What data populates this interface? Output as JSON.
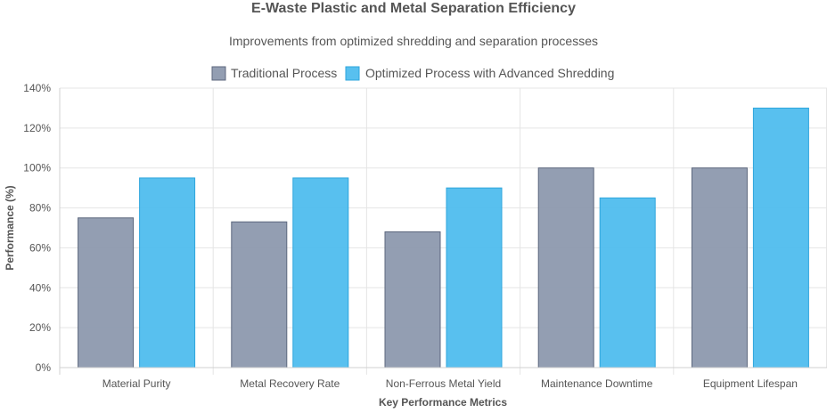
{
  "chart_data": {
    "type": "bar",
    "title": "E-Waste Plastic and Metal Separation Efficiency",
    "subtitle": "Improvements from optimized shredding and separation processes",
    "xlabel": "Key Performance Metrics",
    "ylabel": "Performance (%)",
    "categories": [
      "Material Purity",
      "Metal Recovery Rate",
      "Non-Ferrous Metal Yield",
      "Maintenance Downtime",
      "Equipment Lifespan"
    ],
    "series": [
      {
        "name": "Traditional Process",
        "values": [
          75,
          73,
          68,
          100,
          100
        ],
        "color": "#8d99ae",
        "border": "#5c677d"
      },
      {
        "name": "Optimized Process with Advanced Shredding",
        "values": [
          95,
          95,
          90,
          85,
          130
        ],
        "color": "#4fbdee",
        "border": "#2ea6dc"
      }
    ],
    "ylim": [
      0,
      140
    ],
    "yticks": [
      0,
      20,
      40,
      60,
      80,
      100,
      120,
      140
    ],
    "ytick_labels": [
      "0%",
      "20%",
      "40%",
      "60%",
      "80%",
      "100%",
      "120%",
      "140%"
    ],
    "grid": true,
    "legend_position": "top"
  }
}
